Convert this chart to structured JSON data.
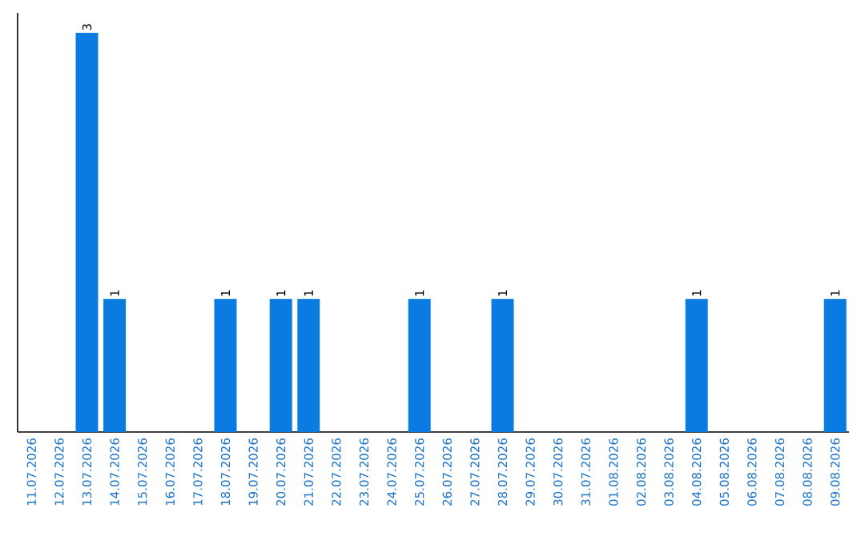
{
  "chart_data": {
    "type": "bar",
    "color": "#0a7be0",
    "categories": [
      "11.07.2026",
      "12.07.2026",
      "13.07.2026",
      "14.07.2026",
      "15.07.2026",
      "16.07.2026",
      "17.07.2026",
      "18.07.2026",
      "19.07.2026",
      "20.07.2026",
      "21.07.2026",
      "22.07.2026",
      "23.07.2026",
      "24.07.2026",
      "25.07.2026",
      "26.07.2026",
      "27.07.2026",
      "28.07.2026",
      "29.07.2026",
      "30.07.2026",
      "31.07.2026",
      "01.08.2026",
      "02.08.2026",
      "03.08.2026",
      "04.08.2026",
      "05.08.2026",
      "06.08.2026",
      "07.08.2026",
      "08.08.2026",
      "09.08.2026"
    ],
    "values": [
      0,
      0,
      3,
      1,
      0,
      0,
      0,
      1,
      0,
      1,
      1,
      0,
      0,
      0,
      1,
      0,
      0,
      1,
      0,
      0,
      0,
      0,
      0,
      0,
      1,
      0,
      0,
      0,
      0,
      1
    ],
    "value_labels": [
      null,
      null,
      "3",
      "1",
      null,
      null,
      null,
      "1",
      null,
      "1",
      "1",
      null,
      null,
      null,
      "1",
      null,
      null,
      "1",
      null,
      null,
      null,
      null,
      null,
      null,
      "1",
      null,
      null,
      null,
      null,
      "1"
    ],
    "grid": false
  }
}
